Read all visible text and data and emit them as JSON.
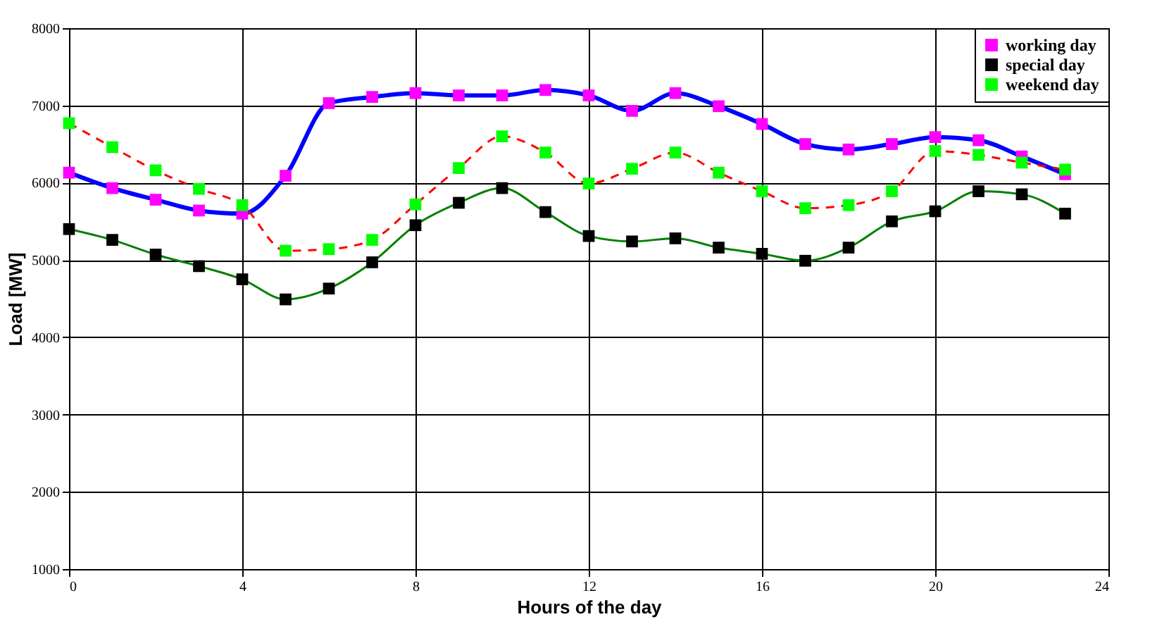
{
  "chart_data": {
    "type": "line",
    "xlabel": "Hours of the day",
    "ylabel": "Load [MW]",
    "x": [
      0,
      1,
      2,
      3,
      4,
      5,
      6,
      7,
      8,
      9,
      10,
      11,
      12,
      13,
      14,
      15,
      16,
      17,
      18,
      19,
      20,
      21,
      22,
      23
    ],
    "xlim": [
      0,
      24
    ],
    "xticks": [
      0,
      4,
      8,
      12,
      16,
      20,
      24
    ],
    "ylim": [
      1000,
      8000
    ],
    "yticks": [
      1000,
      2000,
      3000,
      4000,
      5000,
      6000,
      7000,
      8000
    ],
    "grid": true,
    "legend": "top right",
    "marker": "square",
    "series": [
      {
        "name": "working day",
        "color": "#0000ff",
        "colors": [
          "#ff00ff",
          "#ff00ff",
          "#ff00ff",
          "#ff00ff",
          "#ff00ff",
          "#ff00ff",
          "#ff00ff",
          "#ff00ff",
          "#ff00ff",
          "#ff00ff",
          "#ff00ff",
          "#ff00ff",
          "#ff00ff",
          "#ff00ff",
          "#ff00ff",
          "#ff00ff",
          "#ff00ff",
          "#ff00ff",
          "#ff00ff",
          "#ff00ff",
          "#ff00ff",
          "#ff00ff",
          "#ff00ff",
          "#ff00ff"
        ],
        "line_style": "solid",
        "values": [
          6130,
          5930,
          5780,
          5640,
          5600,
          6090,
          7030,
          7110,
          7160,
          7130,
          7130,
          7200,
          7130,
          6930,
          7160,
          6990,
          6760,
          6500,
          6430,
          6500,
          6590,
          6550,
          6340,
          6110
        ]
      },
      {
        "name": "special day",
        "color": "#008000",
        "colors": [
          "#000000",
          "#000000",
          "#000000",
          "#000000",
          "#000000",
          "#000000",
          "#000000",
          "#000000",
          "#000000",
          "#000000",
          "#000000",
          "#000000",
          "#000000",
          "#000000",
          "#000000",
          "#000000",
          "#000000",
          "#000000",
          "#000000",
          "#000000",
          "#000000",
          "#000000",
          "#000000",
          "#000000"
        ],
        "line_style": "solid",
        "values": [
          5400,
          5260,
          5070,
          4920,
          4750,
          4490,
          4630,
          4970,
          5450,
          5740,
          5930,
          5620,
          5310,
          5240,
          5280,
          5160,
          5080,
          4990,
          5160,
          5500,
          5630,
          5890,
          5850,
          5600
        ]
      },
      {
        "name": "weekend day",
        "color": "#ff0000",
        "colors": [
          "#00ff00",
          "#00ff00",
          "#00ff00",
          "#00ff00",
          "#00ff00",
          "#00ff00",
          "#00ff00",
          "#00ff00",
          "#00ff00",
          "#00ff00",
          "#00ff00",
          "#00ff00",
          "#00ff00",
          "#00ff00",
          "#00ff00",
          "#00ff00",
          "#00ff00",
          "#00ff00",
          "#00ff00",
          "#00ff00",
          "#00ff00",
          "#00ff00",
          "#00ff00",
          "#00ff00"
        ],
        "line_style": "dashed",
        "values": [
          6770,
          6460,
          6160,
          5920,
          5710,
          5120,
          5140,
          5260,
          5720,
          6190,
          6600,
          6390,
          5990,
          6180,
          6390,
          6130,
          5890,
          5670,
          5710,
          5890,
          6410,
          6360,
          6260,
          6170
        ]
      }
    ]
  }
}
